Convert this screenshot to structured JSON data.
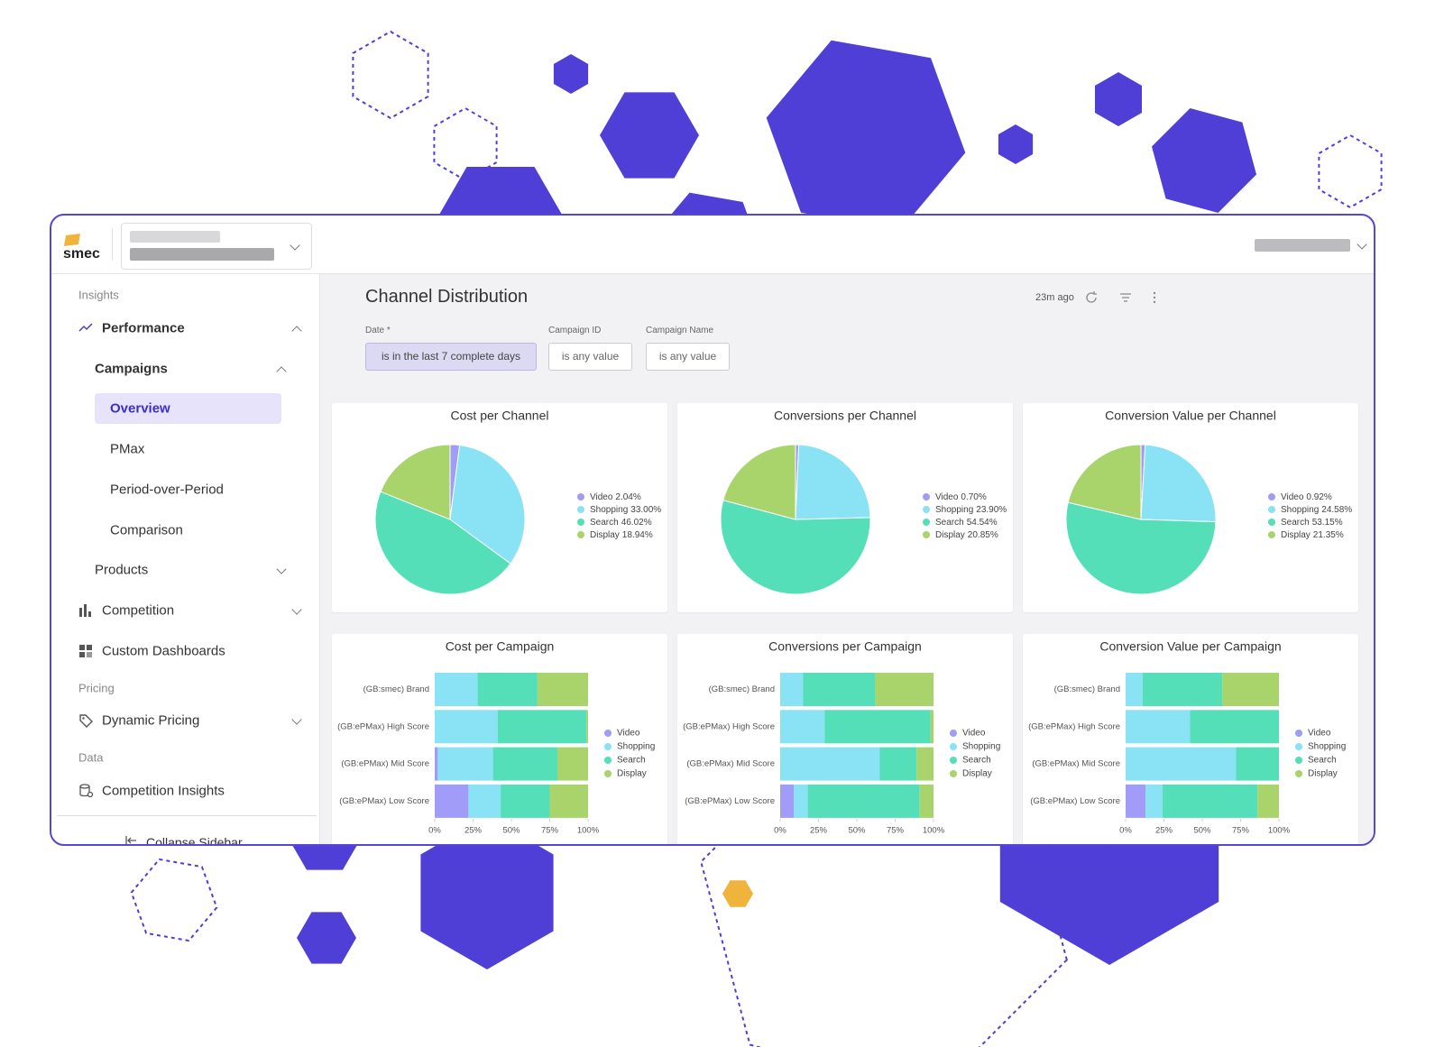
{
  "logo": "smec",
  "nav": [
    "Insights",
    "Performance",
    "Campaigns",
    "Overview",
    "PMax",
    "Period-over-Period",
    "Comparison",
    "Products",
    "Competition",
    "Custom Dashboards",
    "Pricing",
    "Dynamic Pricing",
    "Data",
    "Competition Insights",
    "Collapse Sidebar"
  ],
  "header": {
    "title": "Channel Distribution",
    "updated": "23m ago"
  },
  "filters": [
    {
      "label": "Date *",
      "value": "is in the last 7 complete days"
    },
    {
      "label": "Campaign ID",
      "value": "is any value"
    },
    {
      "label": "Campaign Name",
      "value": "is any value"
    }
  ],
  "chart_data": [
    {
      "type": "pie",
      "title": "Cost per Channel",
      "categories": [
        "Video",
        "Shopping",
        "Search",
        "Display"
      ],
      "values": [
        2.04,
        33.0,
        46.02,
        18.94
      ],
      "value_labels": [
        "2.04%",
        "33.00%",
        "46.02%",
        "18.94%"
      ],
      "colors": [
        "#a09cf7",
        "#8ae2f5",
        "#55dfb8",
        "#a9d46b"
      ]
    },
    {
      "type": "pie",
      "title": "Conversions per Channel",
      "categories": [
        "Video",
        "Shopping",
        "Search",
        "Display"
      ],
      "values": [
        0.7,
        23.9,
        54.54,
        20.85
      ],
      "value_labels": [
        "0.70%",
        "23.90%",
        "54.54%",
        "20.85%"
      ],
      "colors": [
        "#a09cf7",
        "#8ae2f5",
        "#55dfb8",
        "#a9d46b"
      ]
    },
    {
      "type": "pie",
      "title": "Conversion Value per Channel",
      "categories": [
        "Video",
        "Shopping",
        "Search",
        "Display"
      ],
      "values": [
        0.92,
        24.58,
        53.15,
        21.35
      ],
      "value_labels": [
        "0.92%",
        "24.58%",
        "53.15%",
        "21.35%"
      ],
      "colors": [
        "#a09cf7",
        "#8ae2f5",
        "#55dfb8",
        "#a9d46b"
      ]
    },
    {
      "type": "bar",
      "orientation": "horizontal",
      "stacked": true,
      "title": "Cost per Campaign",
      "categories": [
        "(GB:smec) Brand",
        "(GB:ePMax) High Score",
        "(GB:ePMax) Mid Score",
        "(GB:ePMax) Low Score"
      ],
      "series": [
        {
          "name": "Video",
          "color": "#a09cf7",
          "values": [
            0,
            0,
            2,
            22
          ]
        },
        {
          "name": "Shopping",
          "color": "#8ae2f5",
          "values": [
            28,
            41,
            36,
            21
          ]
        },
        {
          "name": "Search",
          "color": "#55dfb8",
          "values": [
            39,
            58,
            42,
            32
          ]
        },
        {
          "name": "Display",
          "color": "#a9d46b",
          "values": [
            33,
            1,
            20,
            25
          ]
        }
      ],
      "xlim": [
        0,
        100
      ],
      "xticks": [
        {
          "value": 0,
          "label": "0%"
        },
        {
          "value": 25,
          "label": "25%"
        },
        {
          "value": 50,
          "label": "50%"
        },
        {
          "value": 75,
          "label": "75%"
        },
        {
          "value": 100,
          "label": "100%"
        }
      ]
    },
    {
      "type": "bar",
      "orientation": "horizontal",
      "stacked": true,
      "title": "Conversions per Campaign",
      "categories": [
        "(GB:smec) Brand",
        "(GB:ePMax) High Score",
        "(GB:ePMax) Mid Score",
        "(GB:ePMax) Low Score"
      ],
      "series": [
        {
          "name": "Video",
          "color": "#a09cf7",
          "values": [
            0,
            0,
            0,
            9
          ]
        },
        {
          "name": "Shopping",
          "color": "#8ae2f5",
          "values": [
            15,
            29,
            65,
            9
          ]
        },
        {
          "name": "Search",
          "color": "#55dfb8",
          "values": [
            47,
            69,
            24,
            73
          ]
        },
        {
          "name": "Display",
          "color": "#a9d46b",
          "values": [
            38,
            2,
            11,
            9
          ]
        }
      ],
      "xlim": [
        0,
        100
      ],
      "xticks": [
        {
          "value": 0,
          "label": "0%"
        },
        {
          "value": 25,
          "label": "25%"
        },
        {
          "value": 50,
          "label": "50%"
        },
        {
          "value": 75,
          "label": "75%"
        },
        {
          "value": 100,
          "label": "100%"
        }
      ]
    },
    {
      "type": "bar",
      "orientation": "horizontal",
      "stacked": true,
      "title": "Conversion Value per Campaign",
      "categories": [
        "(GB:smec) Brand",
        "(GB:ePMax) High Score",
        "(GB:ePMax) Mid Score",
        "(GB:ePMax) Low Score"
      ],
      "series": [
        {
          "name": "Video",
          "color": "#a09cf7",
          "values": [
            0,
            0,
            0,
            13
          ]
        },
        {
          "name": "Shopping",
          "color": "#8ae2f5",
          "values": [
            11,
            42,
            72,
            11
          ]
        },
        {
          "name": "Search",
          "color": "#55dfb8",
          "values": [
            52,
            58,
            28,
            62
          ]
        },
        {
          "name": "Display",
          "color": "#a9d46b",
          "values": [
            37,
            0,
            0,
            14
          ]
        }
      ],
      "xlim": [
        0,
        100
      ],
      "xticks": [
        {
          "value": 0,
          "label": "0%"
        },
        {
          "value": 25,
          "label": "25%"
        },
        {
          "value": 50,
          "label": "50%"
        },
        {
          "value": 75,
          "label": "75%"
        },
        {
          "value": 100,
          "label": "100%"
        }
      ]
    }
  ]
}
